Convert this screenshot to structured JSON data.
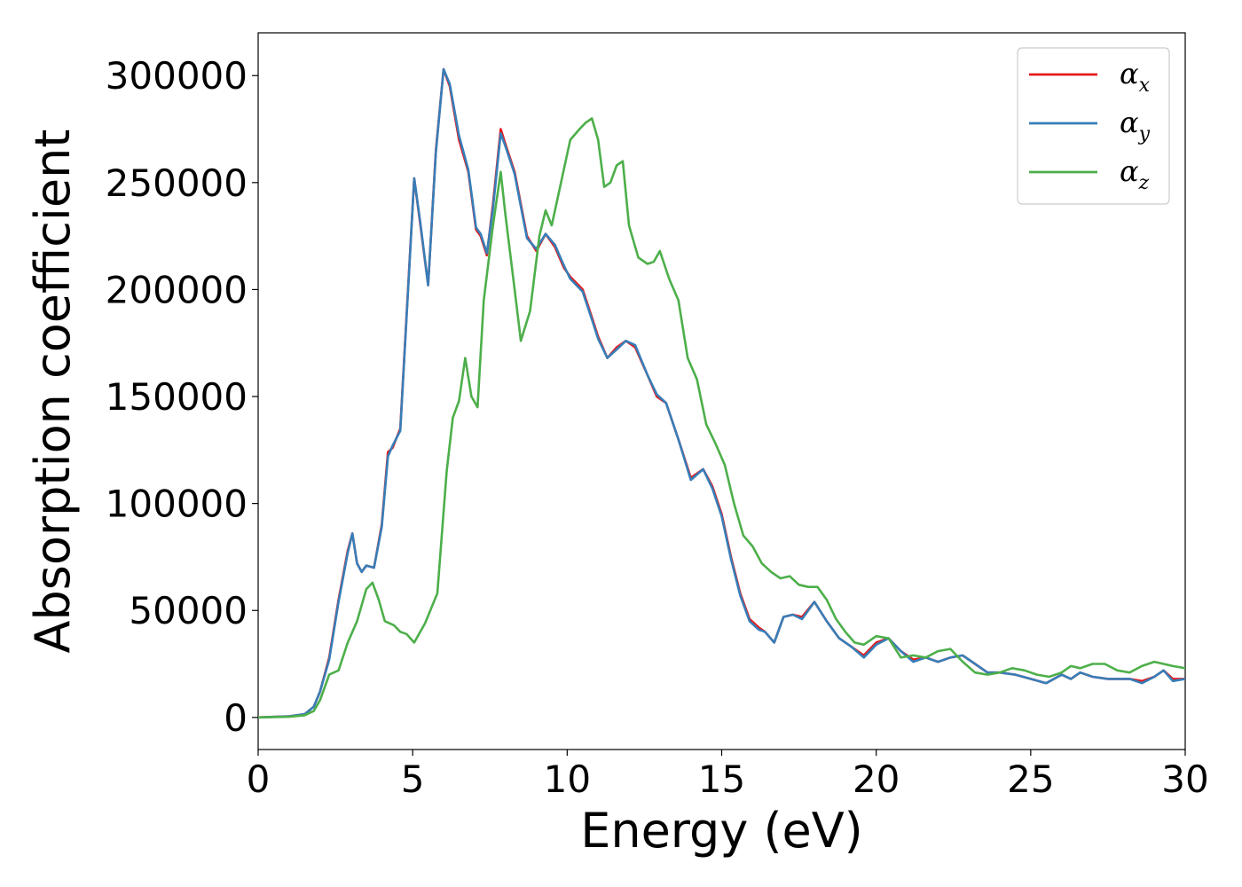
{
  "chart_data": {
    "type": "line",
    "title": "",
    "xlabel": "Energy (eV)",
    "ylabel": "Absorption coefficient",
    "xlim": [
      0,
      30
    ],
    "ylim": [
      -15000,
      320000
    ],
    "xticks": [
      0,
      5,
      10,
      15,
      20,
      25,
      30
    ],
    "xtick_labels": [
      "0",
      "5",
      "10",
      "15",
      "20",
      "25",
      "30"
    ],
    "yticks": [
      0,
      50000,
      100000,
      150000,
      200000,
      250000,
      300000
    ],
    "ytick_labels": [
      "0",
      "50000",
      "100000",
      "150000",
      "200000",
      "250000",
      "300000"
    ],
    "grid": false,
    "legend_position": "top-right",
    "series": [
      {
        "name": "αx",
        "symbol": "α",
        "subscript": "x",
        "color": "#e41a1c",
        "x": [
          0,
          1,
          1.5,
          1.8,
          2.0,
          2.3,
          2.6,
          2.9,
          3.05,
          3.2,
          3.35,
          3.5,
          3.75,
          4.0,
          4.2,
          4.35,
          4.6,
          4.85,
          5.05,
          5.25,
          5.5,
          5.75,
          6.0,
          6.2,
          6.5,
          6.8,
          7.05,
          7.2,
          7.4,
          7.6,
          7.85,
          8.0,
          8.3,
          8.7,
          9.0,
          9.3,
          9.6,
          9.9,
          10.1,
          10.5,
          10.8,
          11.0,
          11.3,
          11.6,
          11.9,
          12.2,
          12.6,
          12.9,
          13.2,
          13.6,
          14.0,
          14.4,
          14.7,
          15.0,
          15.3,
          15.6,
          15.9,
          16.2,
          16.4,
          16.7,
          17.0,
          17.3,
          17.6,
          18.0,
          18.4,
          18.8,
          19.2,
          19.6,
          20.0,
          20.4,
          20.8,
          21.2,
          21.6,
          22.0,
          22.4,
          22.8,
          23.2,
          23.6,
          24.0,
          24.5,
          25.0,
          25.5,
          26.0,
          26.3,
          26.6,
          27.0,
          27.5,
          27.8,
          28.2,
          28.6,
          29.0,
          29.3,
          29.6,
          30.0
        ],
        "y": [
          0,
          500,
          1500,
          5000,
          12000,
          28000,
          55000,
          78000,
          86000,
          72000,
          68000,
          71000,
          70000,
          90000,
          124000,
          126000,
          135000,
          200000,
          252000,
          230000,
          202000,
          265000,
          303000,
          295000,
          270000,
          255000,
          228000,
          225000,
          216000,
          240000,
          275000,
          268000,
          255000,
          225000,
          218000,
          226000,
          220000,
          210000,
          206000,
          200000,
          187000,
          178000,
          168000,
          173000,
          176000,
          173000,
          160000,
          150000,
          147000,
          130000,
          112000,
          116000,
          108000,
          95000,
          75000,
          58000,
          46000,
          42000,
          40000,
          35000,
          47000,
          48000,
          47000,
          54000,
          45000,
          37000,
          33000,
          29000,
          35000,
          37000,
          31000,
          27000,
          28000,
          26000,
          28000,
          29000,
          25000,
          21000,
          21000,
          20000,
          18000,
          16000,
          20000,
          18000,
          21000,
          19000,
          18000,
          18000,
          18000,
          17000,
          19000,
          22000,
          18000,
          18000
        ]
      },
      {
        "name": "αy",
        "symbol": "α",
        "subscript": "y",
        "color": "#377eb8",
        "x": [
          0,
          1,
          1.5,
          1.8,
          2.0,
          2.3,
          2.6,
          2.9,
          3.05,
          3.2,
          3.35,
          3.5,
          3.75,
          4.0,
          4.2,
          4.35,
          4.6,
          4.85,
          5.05,
          5.25,
          5.5,
          5.75,
          6.0,
          6.2,
          6.5,
          6.8,
          7.05,
          7.2,
          7.4,
          7.6,
          7.85,
          8.0,
          8.3,
          8.7,
          9.0,
          9.3,
          9.6,
          9.9,
          10.1,
          10.5,
          10.8,
          11.0,
          11.3,
          11.6,
          11.9,
          12.2,
          12.6,
          12.9,
          13.2,
          13.6,
          14.0,
          14.4,
          14.7,
          15.0,
          15.3,
          15.6,
          15.9,
          16.2,
          16.4,
          16.7,
          17.0,
          17.3,
          17.6,
          18.0,
          18.4,
          18.8,
          19.2,
          19.6,
          20.0,
          20.4,
          20.8,
          21.2,
          21.6,
          22.0,
          22.4,
          22.8,
          23.2,
          23.6,
          24.0,
          24.5,
          25.0,
          25.5,
          26.0,
          26.3,
          26.6,
          27.0,
          27.5,
          27.8,
          28.2,
          28.6,
          29.0,
          29.3,
          29.6,
          30.0
        ],
        "y": [
          0,
          500,
          1500,
          5000,
          12000,
          27000,
          54000,
          77000,
          86000,
          72000,
          68000,
          71000,
          70000,
          89000,
          122000,
          127000,
          134000,
          199000,
          252000,
          231000,
          202000,
          264000,
          303000,
          296000,
          272000,
          256000,
          229000,
          226000,
          217000,
          238000,
          273000,
          267000,
          254000,
          224000,
          219000,
          226000,
          221000,
          211000,
          205000,
          199000,
          186000,
          177000,
          168000,
          172000,
          176000,
          174000,
          160000,
          151000,
          147000,
          130000,
          111000,
          116000,
          107000,
          94000,
          74000,
          57000,
          45000,
          41000,
          40000,
          35000,
          47000,
          48000,
          46000,
          54000,
          45000,
          37000,
          33000,
          28000,
          34000,
          37000,
          31000,
          26000,
          28000,
          26000,
          28000,
          29000,
          25000,
          21000,
          21000,
          20000,
          18000,
          16000,
          20000,
          18000,
          21000,
          19000,
          18000,
          18000,
          18000,
          16000,
          19000,
          22000,
          17000,
          18000
        ]
      },
      {
        "name": "αz",
        "symbol": "α",
        "subscript": "z",
        "color": "#4daf4a",
        "x": [
          0,
          1,
          1.5,
          1.8,
          2.0,
          2.3,
          2.6,
          2.9,
          3.2,
          3.5,
          3.7,
          3.9,
          4.1,
          4.4,
          4.6,
          4.8,
          5.05,
          5.4,
          5.8,
          6.1,
          6.3,
          6.5,
          6.7,
          6.9,
          7.1,
          7.3,
          7.6,
          7.85,
          8.0,
          8.3,
          8.5,
          8.8,
          9.1,
          9.3,
          9.5,
          9.8,
          10.1,
          10.4,
          10.6,
          10.8,
          11.0,
          11.2,
          11.4,
          11.6,
          11.8,
          12.0,
          12.3,
          12.6,
          12.8,
          13.0,
          13.3,
          13.6,
          13.9,
          14.2,
          14.5,
          14.8,
          15.1,
          15.4,
          15.7,
          16.0,
          16.3,
          16.6,
          16.9,
          17.2,
          17.5,
          17.8,
          18.1,
          18.4,
          18.7,
          19.0,
          19.3,
          19.6,
          20.0,
          20.4,
          20.8,
          21.2,
          21.6,
          22.0,
          22.4,
          22.8,
          23.2,
          23.6,
          24.0,
          24.4,
          24.8,
          25.2,
          25.6,
          26.0,
          26.3,
          26.6,
          27.0,
          27.4,
          27.8,
          28.2,
          28.6,
          29.0,
          29.3,
          29.6,
          30.0
        ],
        "y": [
          0,
          300,
          1000,
          3000,
          8000,
          20000,
          22000,
          35000,
          45000,
          60000,
          63000,
          55000,
          45000,
          43000,
          40000,
          39000,
          35000,
          44000,
          58000,
          115000,
          140000,
          148000,
          168000,
          150000,
          145000,
          195000,
          230000,
          255000,
          235000,
          200000,
          176000,
          190000,
          225000,
          237000,
          230000,
          250000,
          270000,
          275000,
          278000,
          280000,
          270000,
          248000,
          250000,
          258000,
          260000,
          230000,
          215000,
          212000,
          213000,
          218000,
          205000,
          195000,
          168000,
          158000,
          137000,
          128000,
          118000,
          100000,
          85000,
          80000,
          72000,
          68000,
          65000,
          66000,
          62000,
          61000,
          61000,
          55000,
          46000,
          40000,
          35000,
          34000,
          38000,
          37000,
          28000,
          29000,
          28000,
          31000,
          32000,
          26000,
          21000,
          20000,
          21000,
          23000,
          22000,
          20000,
          19000,
          21000,
          24000,
          23000,
          25000,
          25000,
          22000,
          21000,
          24000,
          26000,
          25000,
          24000,
          23000
        ]
      }
    ]
  }
}
